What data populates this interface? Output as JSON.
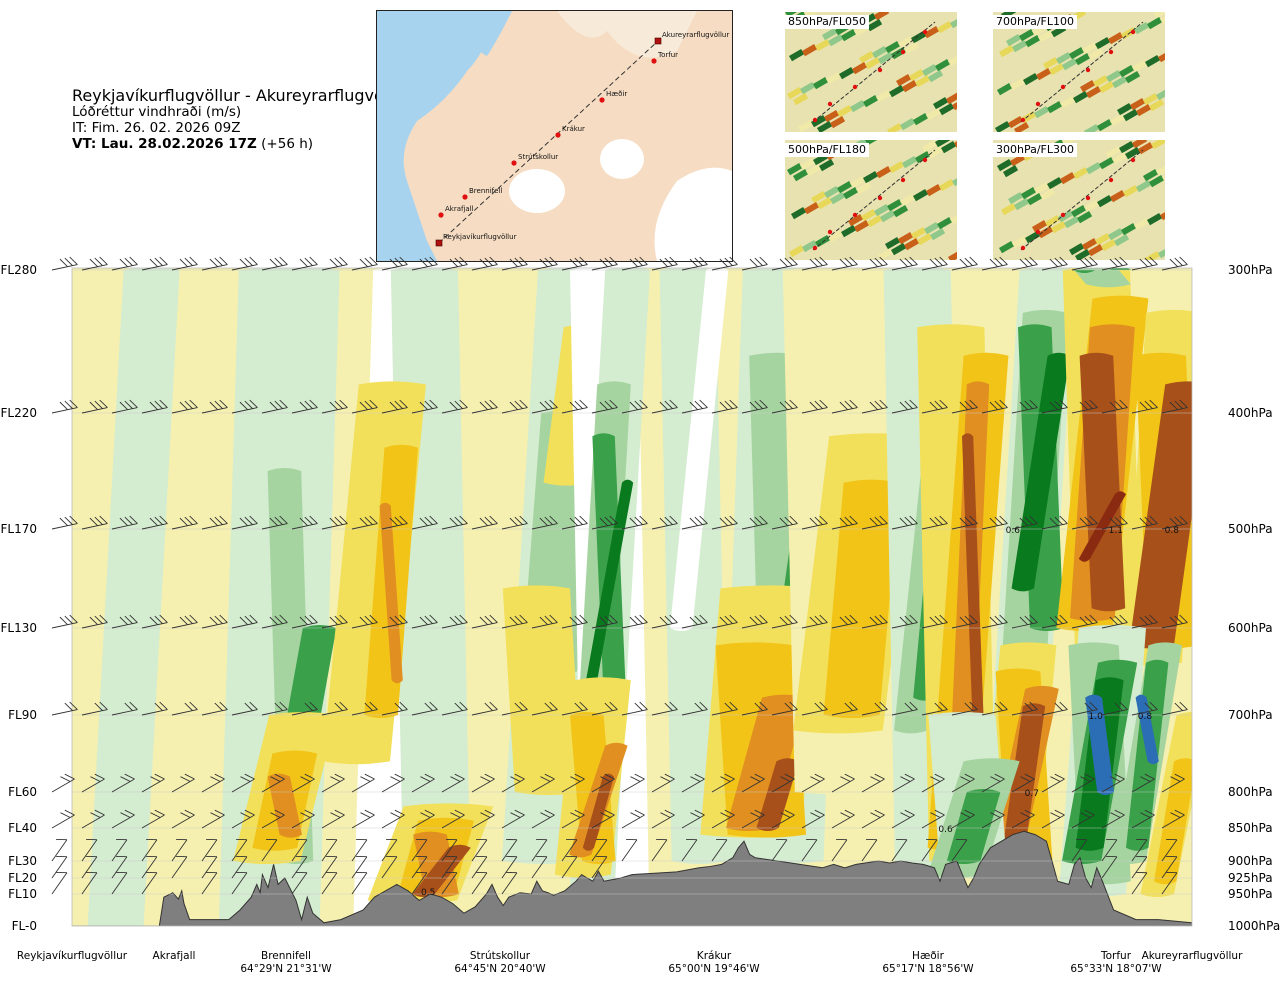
{
  "header": {
    "route": "Reykjavíkurflugvöllur - Akureyrarflugvöllur",
    "variable": "Lóðréttur vindhraði (m/s)",
    "init_time": "IT: Fim. 26. 02. 2026 09Z",
    "valid_time_bold": "VT: Lau. 28.02.2026 17Z",
    "valid_time_offset": "(+56 h)"
  },
  "map": {
    "route_points": [
      "Reykjavíkurflugvöllur",
      "Akrafjall",
      "Brennifell",
      "Strútskollur",
      "Krákur",
      "Hæðir",
      "Torfur",
      "Akureyrarflugvöllur"
    ]
  },
  "thumbnails": [
    {
      "label": "850hPa/FL050"
    },
    {
      "label": "700hPa/FL100"
    },
    {
      "label": "500hPa/FL180"
    },
    {
      "label": "300hPa/FL300"
    }
  ],
  "colors": {
    "strong_up": "#2c6eb5",
    "up_dark": "#0a7a1e",
    "up_mid": "#3aa04a",
    "up_light": "#a6d4a0",
    "up_faint": "#d4ecd0",
    "neutral": "#ffffff",
    "down_faint": "#f6f0b0",
    "down_light": "#f2e05a",
    "down_mid": "#f2c418",
    "down_orange": "#e08f20",
    "down_brown": "#a8501a",
    "down_dark": "#8a2a10",
    "terrain": "#7f7f7f"
  },
  "chart_data": {
    "type": "heatmap",
    "title": "Lóðréttur vindhraði (m/s)",
    "y_left_ticks": [
      "FL280",
      "FL220",
      "FL170",
      "FL130",
      "FL90",
      "FL60",
      "FL40",
      "FL30",
      "FL20",
      "FL10",
      "FL-0"
    ],
    "y_right_ticks": [
      "300hPa",
      "400hPa",
      "500hPa",
      "600hPa",
      "700hPa",
      "800hPa",
      "850hPa",
      "900hPa",
      "925hPa",
      "950hPa",
      "1000hPa"
    ],
    "pressure_levels_hpa": [
      300,
      400,
      500,
      600,
      700,
      800,
      850,
      900,
      925,
      950,
      1000
    ],
    "x_locations": [
      {
        "name": "Reykjavíkurflugvöllur",
        "coord": ""
      },
      {
        "name": "Akrafjall",
        "coord": ""
      },
      {
        "name": "Brennifell",
        "coord": "64°29'N 21°31'W"
      },
      {
        "name": "Strútskollur",
        "coord": "64°45'N 20°40'W"
      },
      {
        "name": "Krákur",
        "coord": "65°00'N 19°46'W"
      },
      {
        "name": "Hæðir",
        "coord": "65°17'N 18°56'W"
      },
      {
        "name": "Torfur",
        "coord": "65°33'N 18°07'W"
      },
      {
        "name": "Akureyrarflugvöllur",
        "coord": ""
      }
    ],
    "contour_labels": [
      {
        "text": "0.5",
        "dist": 0.318,
        "hpa": 945
      },
      {
        "text": "0.6",
        "dist": 0.84,
        "hpa": 500
      },
      {
        "text": "1.1",
        "dist": 0.932,
        "hpa": 500
      },
      {
        "text": "0.8",
        "dist": 0.982,
        "hpa": 500
      },
      {
        "text": "1.0",
        "dist": 0.914,
        "hpa": 700
      },
      {
        "text": "0.8",
        "dist": 0.958,
        "hpa": 700
      },
      {
        "text": "0.7",
        "dist": 0.857,
        "hpa": 800
      },
      {
        "text": "0.6",
        "dist": 0.78,
        "hpa": 850
      }
    ]
  }
}
